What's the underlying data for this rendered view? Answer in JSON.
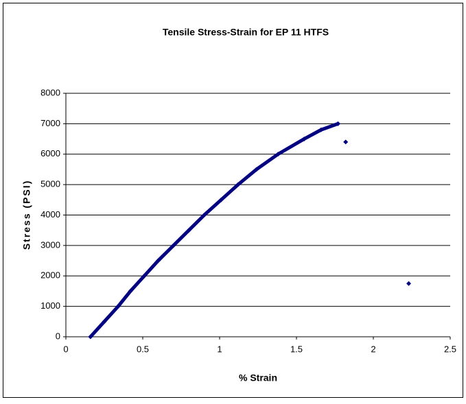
{
  "chart_data": {
    "type": "scatter",
    "title": "Tensile Stress-Strain for EP 11 HTFS",
    "x_label": "% Strain",
    "y_label": "Stress (PSI)",
    "series": [
      {
        "color": "#000080",
        "marker": "diamond",
        "lines": true,
        "x": [
          0.16,
          0.25,
          0.34,
          0.42,
          0.51,
          0.6,
          0.7,
          0.8,
          0.9,
          1.01,
          1.12,
          1.24,
          1.38,
          1.55,
          1.66,
          1.77
        ],
        "values": [
          0,
          500,
          1000,
          1500,
          2000,
          2500,
          3000,
          3500,
          4000,
          4500,
          5000,
          5500,
          6000,
          6500,
          6800,
          7000
        ]
      },
      {
        "color": "#000080",
        "marker": "diamond",
        "lines": false,
        "x": [
          1.82,
          2.23
        ],
        "values": [
          6400,
          1750
        ]
      }
    ],
    "xlim": [
      0,
      2.5
    ],
    "xticks": [
      0,
      0.5,
      1,
      1.5,
      2,
      2.5
    ],
    "ylim": [
      0,
      8000
    ],
    "yticks": [
      0,
      1000,
      2000,
      3000,
      4000,
      5000,
      6000,
      7000,
      8000
    ],
    "grid": true
  }
}
